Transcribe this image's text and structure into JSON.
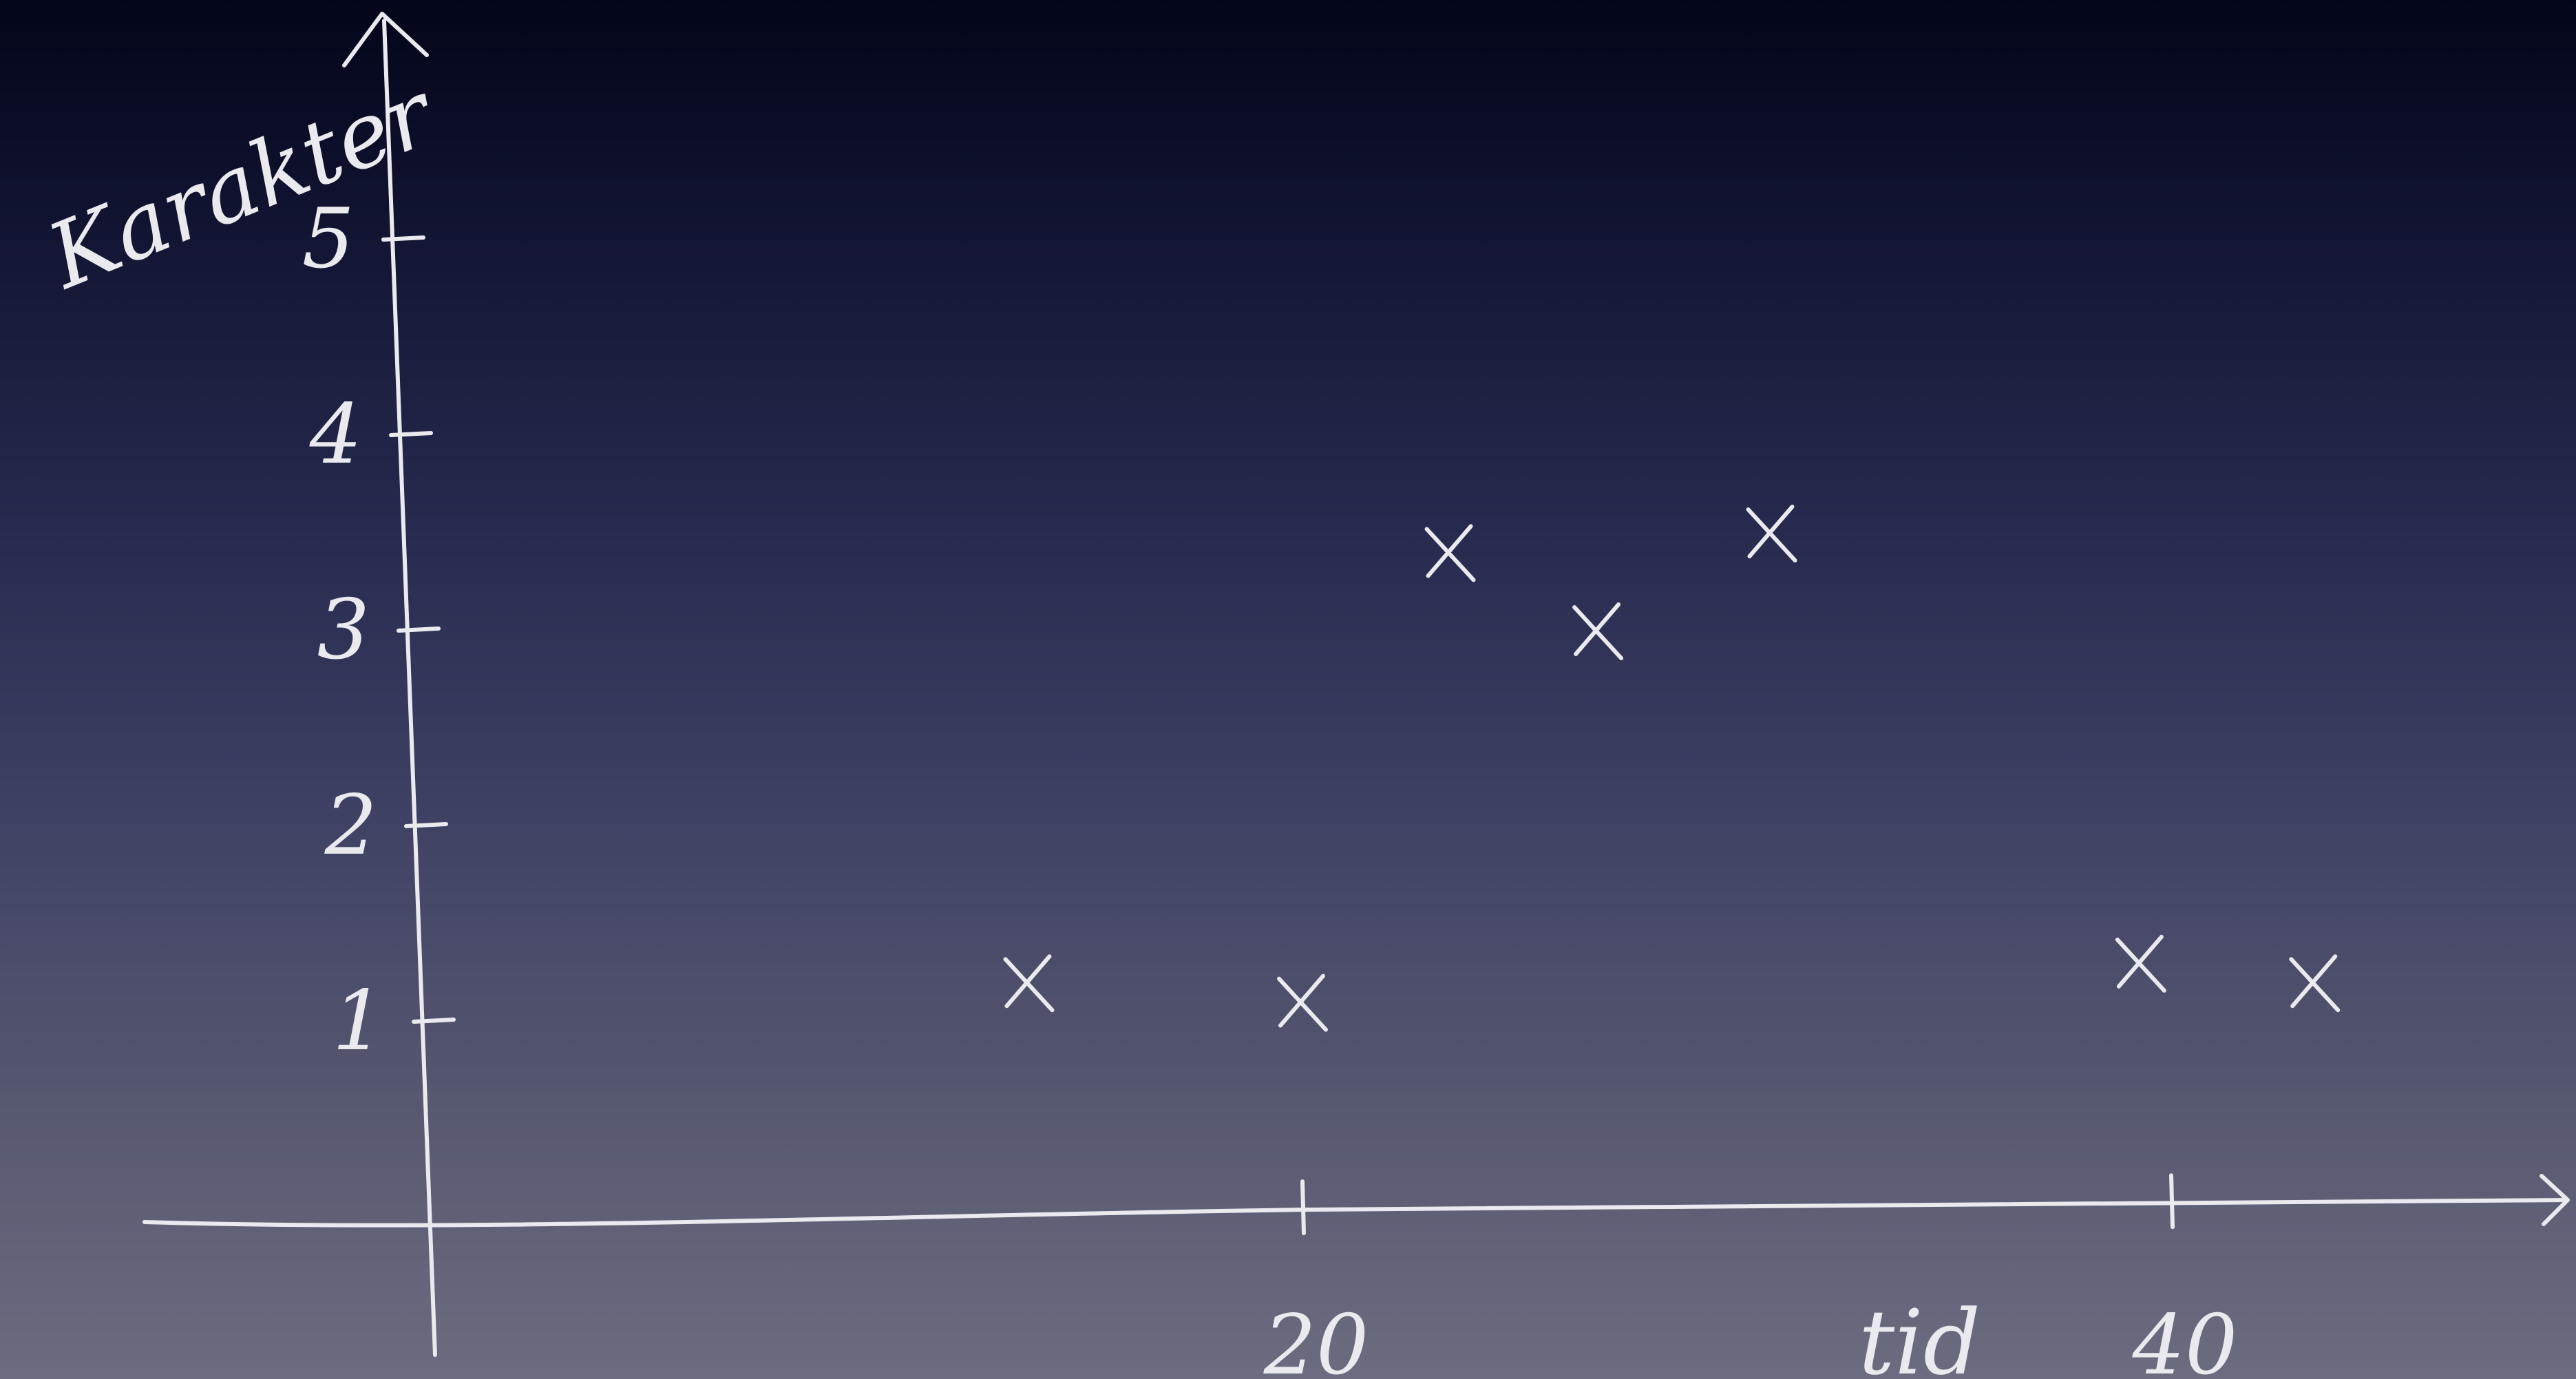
{
  "chart_data": {
    "type": "scatter",
    "title": "",
    "xlabel": "tid",
    "ylabel": "Karakter",
    "x_ticks": [
      20,
      40
    ],
    "y_ticks": [
      1,
      2,
      3,
      4,
      5
    ],
    "xlim": [
      0,
      45
    ],
    "ylim": [
      0,
      5.5
    ],
    "grid": false,
    "points": [
      {
        "x": 13.7,
        "y": 1.2
      },
      {
        "x": 20.0,
        "y": 1.1
      },
      {
        "x": 23.4,
        "y": 3.4
      },
      {
        "x": 26.8,
        "y": 3.0
      },
      {
        "x": 30.8,
        "y": 3.5
      },
      {
        "x": 39.3,
        "y": 1.3
      },
      {
        "x": 43.3,
        "y": 1.2
      }
    ],
    "marker": "x",
    "color": "#e9e9ee"
  }
}
